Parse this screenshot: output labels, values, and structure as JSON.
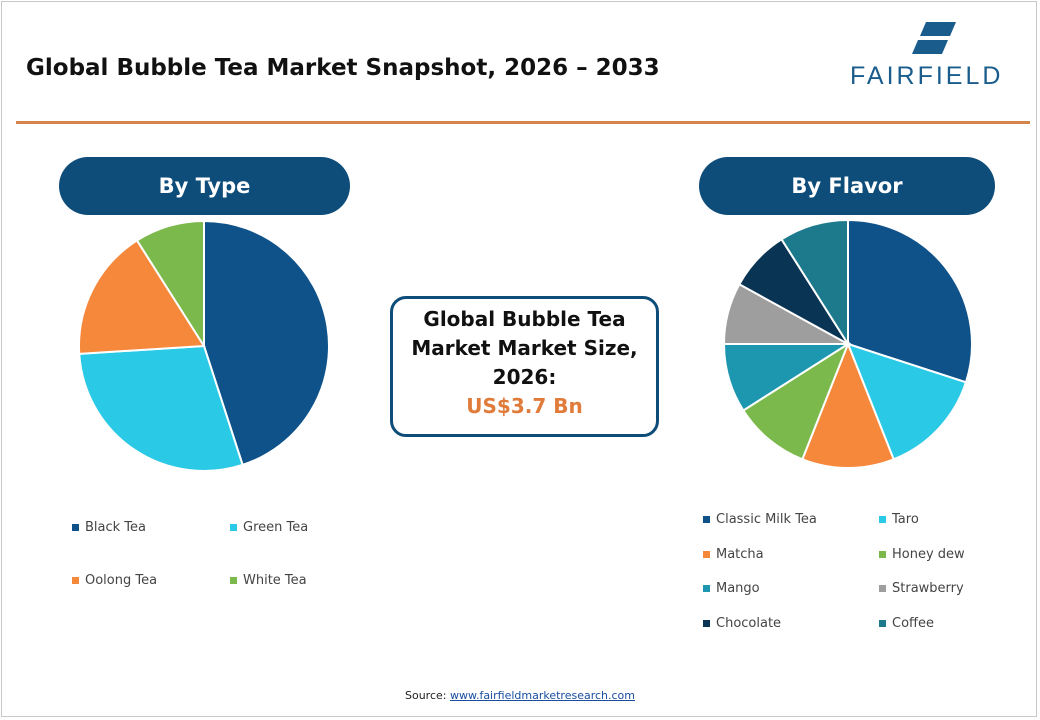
{
  "title": "Global Bubble Tea Market Snapshot, 2026 – 2033",
  "logo": {
    "text": "FAIRFIELD",
    "color": "#1a5c8c"
  },
  "colors": {
    "accent_rule": "#d4834a",
    "pill_bg": "#0e4d7a",
    "highlight": "#e07b3a"
  },
  "center_box": {
    "lines": [
      "Global Bubble Tea",
      "Market Market Size,",
      "2026:"
    ],
    "value": "US$3.7 Bn"
  },
  "source": {
    "label": "Source: ",
    "link": "www.fairfieldmarketresearch.com"
  },
  "chart_data": [
    {
      "type": "pie",
      "title": "By Type",
      "categories": [
        "Black Tea",
        "Green Tea",
        "Oolong Tea",
        "White Tea"
      ],
      "values": [
        45,
        29,
        17,
        9
      ],
      "colors": [
        "#0e5289",
        "#2ac9e6",
        "#f5883a",
        "#7bb94c"
      ],
      "legend": "bottom"
    },
    {
      "type": "pie",
      "title": "By Flavor",
      "categories": [
        "Classic Milk Tea",
        "Taro",
        "Matcha",
        "Honey dew",
        "Mango",
        "Strawberry",
        "Chocolate",
        "Coffee"
      ],
      "values": [
        30,
        14,
        12,
        10,
        9,
        8,
        8,
        9
      ],
      "colors": [
        "#0e5289",
        "#2ac9e6",
        "#f5883a",
        "#7bb94c",
        "#1d96b0",
        "#9e9e9e",
        "#0a3454",
        "#1c7a8c"
      ],
      "legend": "bottom"
    }
  ]
}
